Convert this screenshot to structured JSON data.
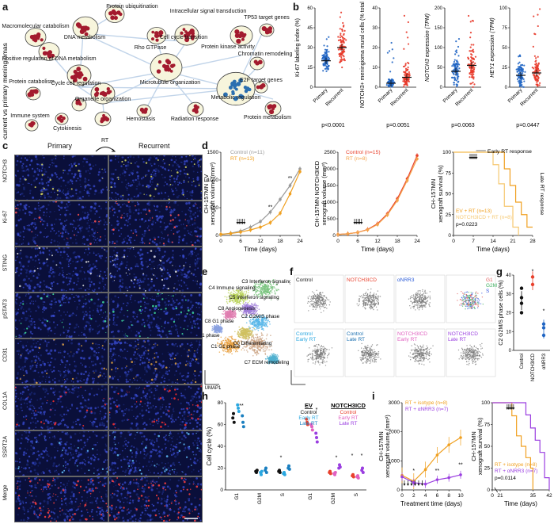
{
  "panels": {
    "a": "a",
    "b": "b",
    "c": "c",
    "d": "d",
    "e": "e",
    "f": "f",
    "g": "g",
    "h": "h",
    "i": "i"
  },
  "panel_a": {
    "ylabel": "Recurrent vs primary meningiomas",
    "terms": [
      "Protein ubiquitination",
      "Intracellular signal transduction",
      "Macromolecular catabolism",
      "DNA metabolism",
      "Rho GTPase",
      "Cell cycle transition",
      "Protein kinase activity",
      "TP53 target genes",
      "Chromatin remodeling",
      "Positive regulation of DNA metabolism",
      "Protein catabolism",
      "Cycle cell regulation",
      "Microtubule organization",
      "E2F target genes",
      "Organelle organization",
      "Metabolic regulation",
      "Immune system",
      "Cytokinesis",
      "Hemostasis",
      "Radiation response",
      "Protein metabolism"
    ]
  },
  "panel_b": {
    "charts": [
      {
        "ylabel": "Ki-67 labeling index (%)",
        "ticks": [
          "0",
          "15",
          "30",
          "45",
          "60"
        ],
        "cats": [
          "Primary",
          "Recurrent"
        ],
        "p": "p<0.0001"
      },
      {
        "ylabel": "NOTCH3+ meningioma mural cells (% total cells)",
        "ticks": [
          "0",
          "10",
          "20",
          "30",
          "40"
        ],
        "cats": [
          "Primary",
          "Recurrent"
        ],
        "p": "p=0.0051"
      },
      {
        "ylabel": "NOTCH3 expression (TPM)",
        "ticks": [
          "0",
          "50",
          "100",
          "150",
          "200"
        ],
        "cats": [
          "Primary",
          "Recurrent"
        ],
        "p": "p=0.0063"
      },
      {
        "ylabel": "HEY1 expression (TPM)",
        "ticks": [
          "0",
          "25",
          "50",
          "75",
          "100"
        ],
        "cats": [
          "Primary",
          "Recurrent"
        ],
        "p": "p=0.0447"
      }
    ]
  },
  "panel_c": {
    "col_primary": "Primary",
    "col_rt": "RT",
    "col_recurrent": "Recurrent",
    "rows": [
      "NOTCH3",
      "Ki-67",
      "STING",
      "pSTAT3",
      "CD31",
      "COL1A",
      "SSRT2A",
      "Merge"
    ]
  },
  "panel_d": {
    "left": {
      "ylabel1": "CH-157MN EV",
      "ylabel2": "xenograft volume (mm³)",
      "xlabel": "Time (days)",
      "legend": [
        "Control (n=11)",
        "RT (n=13)"
      ],
      "xticks": [
        "0",
        "6",
        "12",
        "18",
        "24"
      ],
      "yticks": [
        "0",
        "500",
        "1000",
        "1500"
      ],
      "sig": [
        "**",
        "**"
      ]
    },
    "middle": {
      "ylabel1": "CH-157MN NOTCH3ICD",
      "ylabel2": "xenograft volume (mm³)",
      "xlabel": "Time (days)",
      "legend": [
        "Control (n=15)",
        "RT (n=8)"
      ],
      "xticks": [
        "0",
        "6",
        "12",
        "18",
        "24"
      ],
      "yticks": [
        "0",
        "500",
        "1000",
        "1500",
        "2000",
        "2500"
      ]
    },
    "right": {
      "ylabel1": "CH-157MN",
      "ylabel2": "xenograft survival (%)",
      "xlabel": "Time (days)",
      "early": "Early RT response",
      "late": "Late RT response",
      "legend": [
        "EV + RT (n=13)",
        "NOTCH3ICD + RT (n=8)"
      ],
      "p": "p=0.0223",
      "xticks": [
        "0",
        "7",
        "14",
        "21",
        "28"
      ],
      "yticks": [
        "0",
        "25",
        "50",
        "75",
        "100"
      ]
    }
  },
  "panel_e": {
    "clusters": [
      "C3 Interferon signaling",
      "C4 Immune signaling",
      "C5 Interferon signaling",
      "C8 Angiogenesis",
      "C2 G2M/S phase",
      "C8 G1 phase",
      "C6 G1 phase",
      "C1 G1 phase",
      "C0 Differentiating",
      "C7 ECM remodeling"
    ],
    "umap1": "UMAP1",
    "umap2": "UMAP2"
  },
  "panel_f": {
    "labels": [
      "Control",
      "NOTCH3ICD",
      "αNRR3",
      "Control Early RT",
      "Control Late RT",
      "NOTCH3ICD Early RT",
      "NOTCH3ICD Late RT"
    ],
    "phase_legend": [
      "G1",
      "G2M",
      "S"
    ],
    "umap1": "UMAP1",
    "umap2": "UMAP2"
  },
  "panel_g": {
    "ylabel": "C2 G2M/S phase cells (%)",
    "yticks": [
      "0",
      "10",
      "20",
      "30",
      "40"
    ],
    "cats": [
      "Control",
      "NOTCH3ICD",
      "αNRR3"
    ],
    "sig": [
      "*",
      "*"
    ]
  },
  "panel_h": {
    "ylabel": "Cell cycle (%)",
    "yticks": [
      "0",
      "20",
      "40",
      "60",
      "80"
    ],
    "ev_title": "EV",
    "ev_legend": [
      "Control",
      "Early RT",
      "Late RT"
    ],
    "notch_title": "NOTCH3ICD",
    "notch_legend": [
      "Control",
      "Early RT",
      "Late RT"
    ],
    "cats": [
      "G1",
      "G2M",
      "S",
      "G1",
      "G2M",
      "S"
    ]
  },
  "panel_i": {
    "left": {
      "ylabel1": "CH-157MN",
      "ylabel2": "xenograft volume (mm³)",
      "xlabel": "Treatment time (days)",
      "legend": [
        "RT + isotype (n=8)",
        "RT + αNRR3 (n=7)"
      ],
      "xticks": [
        "0",
        "2",
        "4",
        "6",
        "8",
        "10"
      ],
      "yticks": [
        "0",
        "1000",
        "2000",
        "3000"
      ],
      "sig": [
        "*",
        "**",
        "**"
      ]
    },
    "right": {
      "ylabel1": "CH-157MN",
      "ylabel2": "xenograft survival (%)",
      "xlabel": "Time (days)",
      "legend": [
        "RT + isotype (n=8)",
        "RT + αNRR3 (n=7)"
      ],
      "p": "p=0.0114",
      "xticks": [
        "0",
        "21",
        "35",
        "42"
      ],
      "yticks": [
        "0",
        "25",
        "50",
        "75",
        "100"
      ]
    }
  },
  "colors": {
    "network_red": "#a31b2e",
    "network_blue": "#2b6fb0",
    "primary_blue": "#2166c4",
    "recurrent_red": "#e83a2a",
    "control_gray": "#999999",
    "rt_orange": "#f0a020",
    "notch_red": "#e8402c",
    "notch_orange": "#f4a24a",
    "purple": "#9a3ee0",
    "cyan": "#2aa7e0",
    "scale_bar": "#ffffff"
  },
  "icons": [
    "scatter-plot",
    "network-graph",
    "fluorescence-micrograph",
    "umap-embedding",
    "kaplan-meier-curve",
    "growth-curve"
  ]
}
